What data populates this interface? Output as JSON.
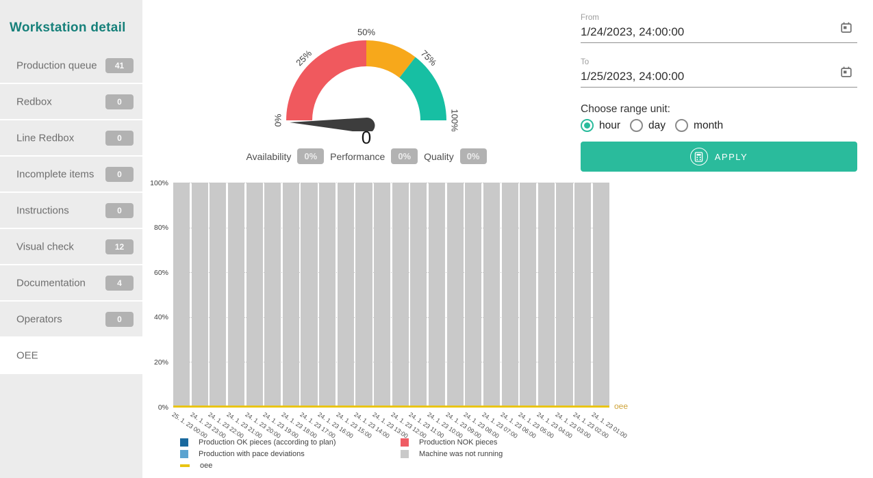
{
  "sidebar": {
    "title": "Workstation detail",
    "items": [
      {
        "label": "Production queue",
        "badge": "41",
        "selected": false
      },
      {
        "label": "Redbox",
        "badge": "0",
        "selected": false
      },
      {
        "label": "Line Redbox",
        "badge": "0",
        "selected": false
      },
      {
        "label": "Incomplete items",
        "badge": "0",
        "selected": false
      },
      {
        "label": "Instructions",
        "badge": "0",
        "selected": false
      },
      {
        "label": "Visual check",
        "badge": "12",
        "selected": false
      },
      {
        "label": "Documentation",
        "badge": "4",
        "selected": false
      },
      {
        "label": "Operators",
        "badge": "0",
        "selected": false
      },
      {
        "label": "OEE",
        "badge": null,
        "selected": true
      }
    ]
  },
  "gauge": {
    "value": "0",
    "needle_value": 0,
    "needle_color": "#3d3d3d",
    "ticks": [
      {
        "label": "0%",
        "pct": 0
      },
      {
        "label": "25%",
        "pct": 25
      },
      {
        "label": "50%",
        "pct": 50
      },
      {
        "label": "75%",
        "pct": 75
      },
      {
        "label": "100%",
        "pct": 100
      }
    ],
    "segments": [
      {
        "from": 0,
        "to": 50,
        "color": "#f0595e"
      },
      {
        "from": 50,
        "to": 71,
        "color": "#f7a81b"
      },
      {
        "from": 71,
        "to": 100,
        "color": "#17bfa3"
      }
    ]
  },
  "metrics": [
    {
      "label": "Availability",
      "value": "0%"
    },
    {
      "label": "Performance",
      "value": "0%"
    },
    {
      "label": "Quality",
      "value": "0%"
    }
  ],
  "filters": {
    "from_label": "From",
    "from_value": "1/24/2023, 24:00:00",
    "to_label": "To",
    "to_value": "1/25/2023, 24:00:00",
    "range_unit_label": "Choose range unit:",
    "units": [
      {
        "label": "hour",
        "selected": true
      },
      {
        "label": "day",
        "selected": false
      },
      {
        "label": "month",
        "selected": false
      }
    ],
    "apply_label": "APPLY"
  },
  "chart_data": {
    "type": "bar",
    "stacked": true,
    "title": "",
    "xlabel": "",
    "ylabel": "",
    "ylim": [
      0,
      100
    ],
    "yticks": [
      "0%",
      "20%",
      "40%",
      "60%",
      "80%",
      "100%"
    ],
    "grid": "dotted-horizontal",
    "legend_position": "bottom",
    "line_label": "oee",
    "categories": [
      "25. 1. 23 00:00",
      "24. 1. 23 23:00",
      "24. 1. 23 22:00",
      "24. 1. 23 21:00",
      "24. 1. 23 20:00",
      "24. 1. 23 19:00",
      "24. 1. 23 18:00",
      "24. 1. 23 17:00",
      "24. 1. 23 16:00",
      "24. 1. 23 15:00",
      "24. 1. 23 14:00",
      "24. 1. 23 13:00",
      "24. 1. 23 12:00",
      "24. 1. 23 11:00",
      "24. 1. 23 10:00",
      "24. 1. 23 09:00",
      "24. 1. 23 08:00",
      "24. 1. 23 07:00",
      "24. 1. 23 06:00",
      "24. 1. 23 05:00",
      "24. 1. 23 04:00",
      "24. 1. 23 03:00",
      "24. 1. 23 02:00",
      "24. 1. 23 01:00"
    ],
    "series": [
      {
        "name": "Production OK pieces (according to plan)",
        "type": "bar",
        "color": "#1a699e",
        "values": [
          0,
          0,
          0,
          0,
          0,
          0,
          0,
          0,
          0,
          0,
          0,
          0,
          0,
          0,
          0,
          0,
          0,
          0,
          0,
          0,
          0,
          0,
          0,
          0
        ]
      },
      {
        "name": "Production NOK pieces",
        "type": "bar",
        "color": "#ef5c64",
        "values": [
          0,
          0,
          0,
          0,
          0,
          0,
          0,
          0,
          0,
          0,
          0,
          0,
          0,
          0,
          0,
          0,
          0,
          0,
          0,
          0,
          0,
          0,
          0,
          0
        ]
      },
      {
        "name": "Production with pace deviations",
        "type": "bar",
        "color": "#5ba3d0",
        "values": [
          0,
          0,
          0,
          0,
          0,
          0,
          0,
          0,
          0,
          0,
          0,
          0,
          0,
          0,
          0,
          0,
          0,
          0,
          0,
          0,
          0,
          0,
          0,
          0
        ]
      },
      {
        "name": "Machine was not running",
        "type": "bar",
        "color": "#c9c9c9",
        "values": [
          100,
          100,
          100,
          100,
          100,
          100,
          100,
          100,
          100,
          100,
          100,
          100,
          100,
          100,
          100,
          100,
          100,
          100,
          100,
          100,
          100,
          100,
          100,
          100
        ]
      },
      {
        "name": "oee",
        "type": "line",
        "color": "#e9c411",
        "values": [
          0,
          0,
          0,
          0,
          0,
          0,
          0,
          0,
          0,
          0,
          0,
          0,
          0,
          0,
          0,
          0,
          0,
          0,
          0,
          0,
          0,
          0,
          0,
          0
        ]
      }
    ]
  }
}
